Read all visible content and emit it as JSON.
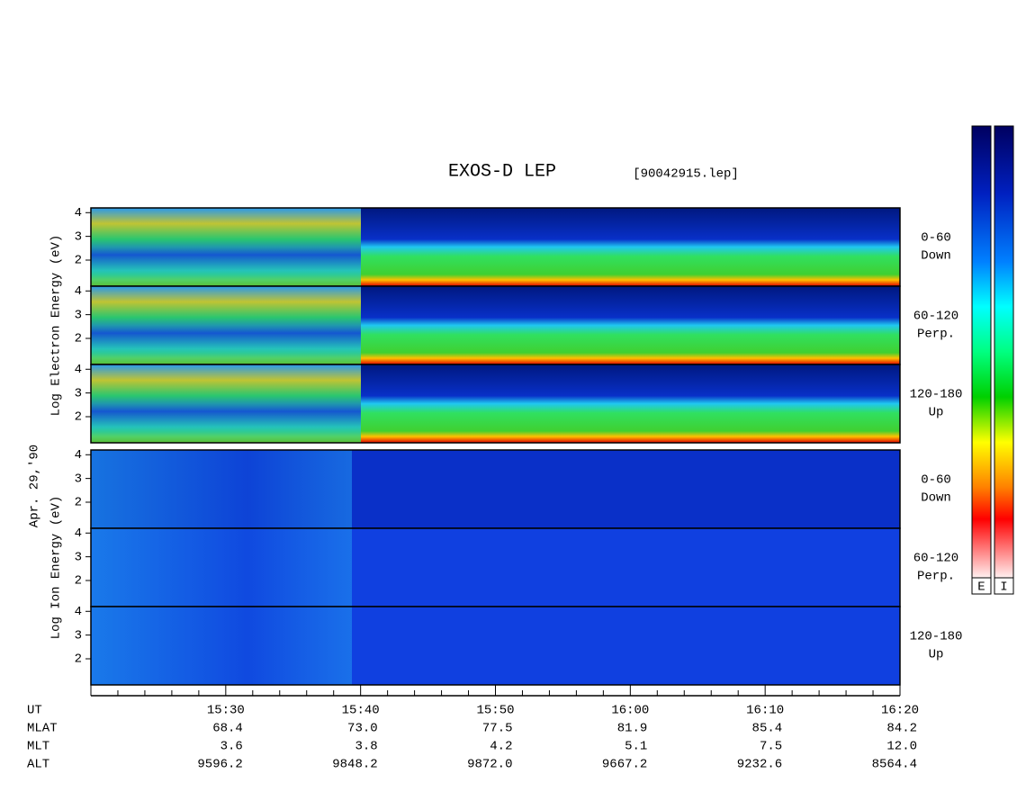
{
  "chart_data": {
    "type": "spectrogram",
    "title": "EXOS-D LEP",
    "subtitle": "[90042915.lep]",
    "date": "Apr. 29,'90",
    "groups": [
      {
        "label": "Log Electron Energy (eV)",
        "species": "electron",
        "panels": [
          {
            "angle": "0-60",
            "direction": "Down"
          },
          {
            "angle": "60-120",
            "direction": "Perp."
          },
          {
            "angle": "120-180",
            "direction": "Up"
          }
        ]
      },
      {
        "label": "Log Ion Energy (eV)",
        "species": "ion",
        "panels": [
          {
            "angle": "0-60",
            "direction": "Down"
          },
          {
            "angle": "60-120",
            "direction": "Perp."
          },
          {
            "angle": "120-180",
            "direction": "Up"
          }
        ]
      }
    ],
    "ylim": [
      0.9,
      4.2
    ],
    "yticks": [
      2,
      3,
      4
    ],
    "xlim": [
      920,
      980
    ],
    "xticks": [
      {
        "value": 930,
        "label": "15:30"
      },
      {
        "value": 940,
        "label": "15:40"
      },
      {
        "value": 950,
        "label": "15:50"
      },
      {
        "value": 960,
        "label": "16:00"
      },
      {
        "value": 970,
        "label": "16:10"
      },
      {
        "value": 980,
        "label": "16:20"
      }
    ],
    "xminorticks": [
      922,
      924,
      926,
      928,
      932,
      934,
      936,
      938,
      942,
      944,
      946,
      948,
      952,
      954,
      956,
      958,
      962,
      964,
      966,
      968,
      972,
      974,
      976,
      978
    ],
    "xaxis_label": "UT",
    "ephemeris": [
      {
        "name": "MLAT",
        "values": [
          "68.4",
          "73.0",
          "77.5",
          "81.9",
          "85.4",
          "84.2"
        ]
      },
      {
        "name": "MLT",
        "values": [
          "3.6",
          "3.8",
          "4.2",
          "5.1",
          "7.5",
          "12.0"
        ]
      },
      {
        "name": "ALT",
        "values": [
          "9596.2",
          "9848.2",
          "9872.0",
          "9667.2",
          "9232.6",
          "8564.4"
        ]
      }
    ],
    "colorbar_labels": [
      "E",
      "I"
    ]
  }
}
